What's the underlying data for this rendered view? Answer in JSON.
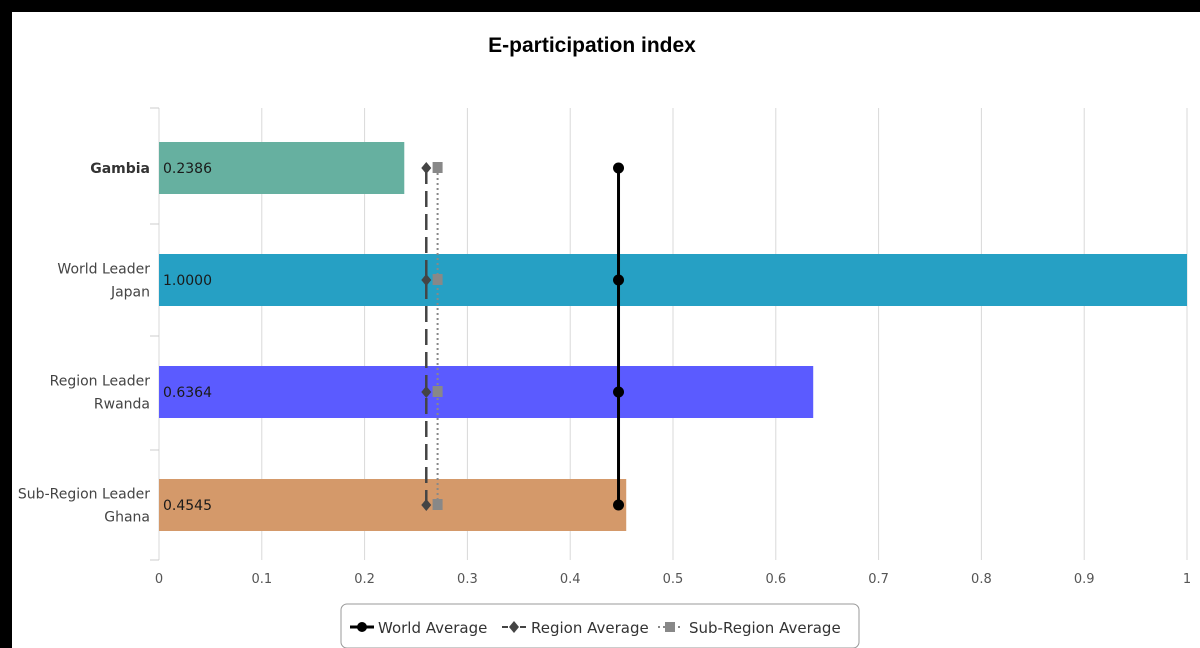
{
  "chart_data": {
    "type": "bar",
    "orientation": "horizontal",
    "title": "E-participation index",
    "categories": [
      {
        "lines": [
          "Gambia"
        ],
        "bold": true
      },
      {
        "lines": [
          "World Leader",
          "Japan"
        ],
        "bold": false
      },
      {
        "lines": [
          "Region Leader",
          "Rwanda"
        ],
        "bold": false
      },
      {
        "lines": [
          "Sub-Region Leader",
          "Ghana"
        ],
        "bold": false
      }
    ],
    "values": [
      0.2386,
      1.0,
      0.6364,
      0.4545
    ],
    "value_labels": [
      "0.2386",
      "1.0000",
      "0.6364",
      "0.4545"
    ],
    "bar_colors": [
      "#66b0a0",
      "#26a0c4",
      "#5b5bff",
      "#d4996a"
    ],
    "xlim": [
      0,
      1
    ],
    "xticks": [
      0,
      0.1,
      0.2,
      0.3,
      0.4,
      0.5,
      0.6,
      0.7,
      0.8,
      0.9,
      1
    ],
    "xtick_labels": [
      "0",
      "0.1",
      "0.2",
      "0.3",
      "0.4",
      "0.5",
      "0.6",
      "0.7",
      "0.8",
      "0.9",
      "1"
    ],
    "grid": true,
    "reference_lines": [
      {
        "name": "World Average",
        "value": 0.447,
        "marker": "circle",
        "style": "solid",
        "color": "#000000"
      },
      {
        "name": "Region Average",
        "value": 0.26,
        "marker": "diamond",
        "style": "dashed",
        "color": "#444444"
      },
      {
        "name": "Sub-Region Average",
        "value": 0.271,
        "marker": "square",
        "style": "dotted",
        "color": "#888888"
      }
    ],
    "legend_position": "bottom-center"
  }
}
